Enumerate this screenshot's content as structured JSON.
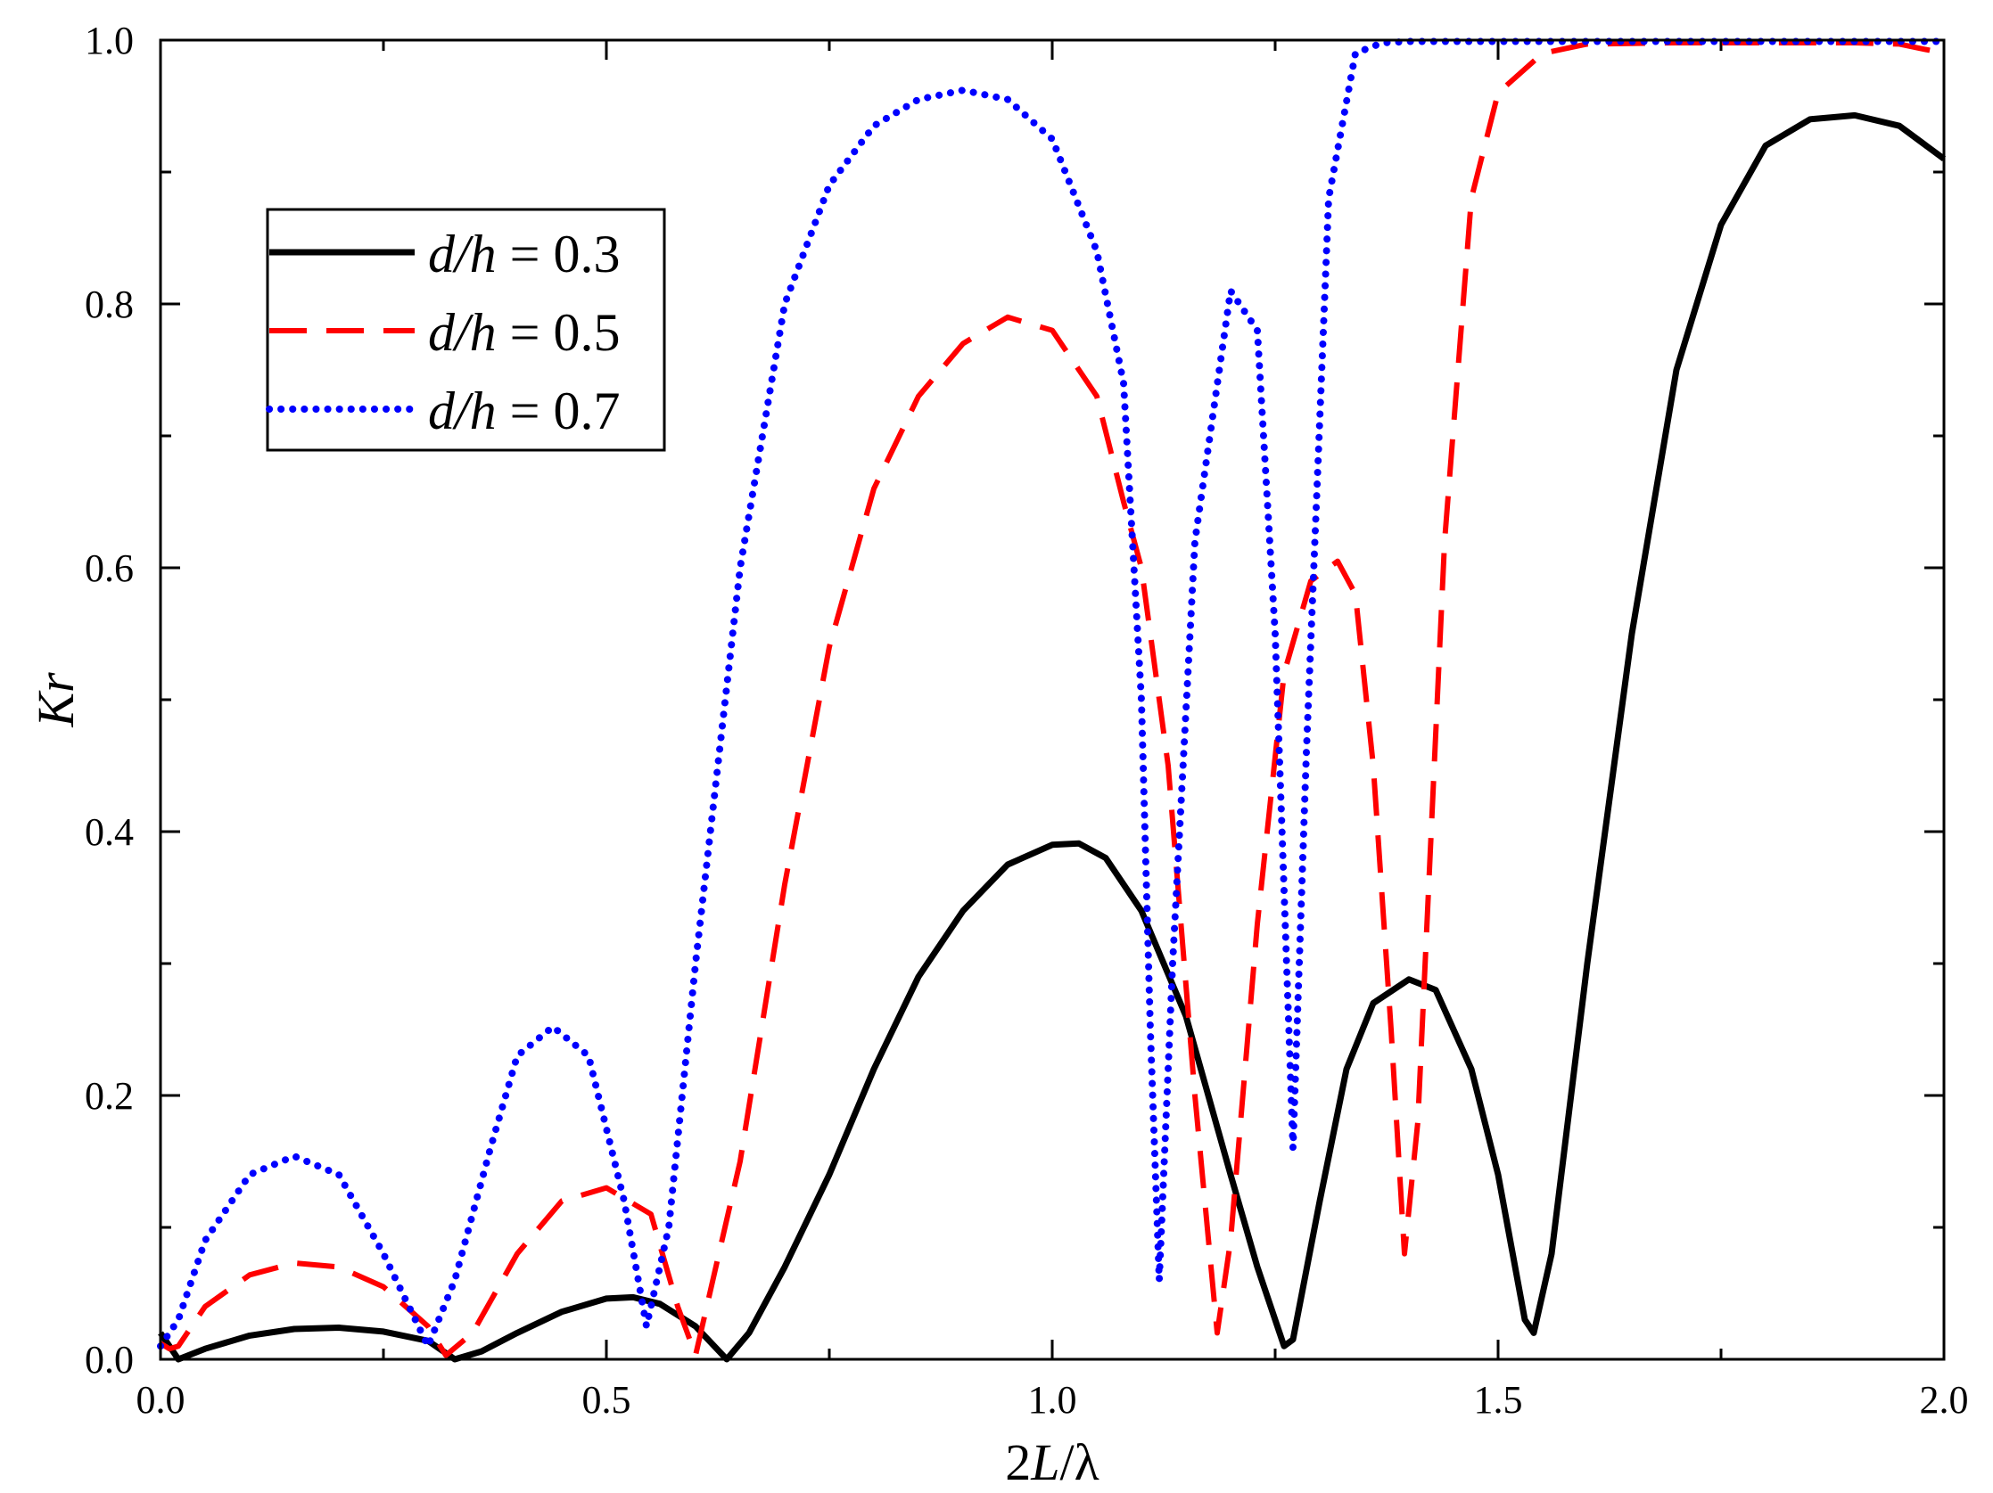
{
  "chart_data": {
    "type": "line",
    "title": "",
    "xlabel": {
      "prefix": "2",
      "italic": "L",
      "suffix": "/λ"
    },
    "ylabel": {
      "italic": "Kr"
    },
    "xlim": [
      0,
      2
    ],
    "ylim": [
      0,
      1
    ],
    "x_ticks": [
      0.0,
      0.5,
      1.0,
      1.5,
      2.0
    ],
    "x_tick_labels": [
      "0.0",
      "0.5",
      "1.0",
      "1.5",
      "2.0"
    ],
    "y_ticks": [
      0.0,
      0.2,
      0.4,
      0.6,
      0.8,
      1.0
    ],
    "y_tick_labels": [
      "0.0",
      "0.2",
      "0.4",
      "0.6",
      "0.8",
      "1.0"
    ],
    "grid": false,
    "legend": {
      "placement": "upper-left"
    },
    "series": [
      {
        "name": "d/h = 0.3",
        "legend_italic": "d/h",
        "legend_rest": " = 0.3",
        "color": "#000000",
        "style": "solid",
        "points": [
          [
            0.0,
            0.02
          ],
          [
            0.01,
            0.01
          ],
          [
            0.02,
            0.0
          ],
          [
            0.05,
            0.008
          ],
          [
            0.1,
            0.018
          ],
          [
            0.15,
            0.023
          ],
          [
            0.2,
            0.024
          ],
          [
            0.25,
            0.021
          ],
          [
            0.3,
            0.014
          ],
          [
            0.33,
            0.0
          ],
          [
            0.36,
            0.006
          ],
          [
            0.4,
            0.02
          ],
          [
            0.45,
            0.036
          ],
          [
            0.5,
            0.046
          ],
          [
            0.53,
            0.047
          ],
          [
            0.56,
            0.042
          ],
          [
            0.6,
            0.025
          ],
          [
            0.635,
            0.0
          ],
          [
            0.66,
            0.02
          ],
          [
            0.7,
            0.07
          ],
          [
            0.75,
            0.14
          ],
          [
            0.8,
            0.22
          ],
          [
            0.85,
            0.29
          ],
          [
            0.9,
            0.34
          ],
          [
            0.95,
            0.375
          ],
          [
            1.0,
            0.39
          ],
          [
            1.03,
            0.391
          ],
          [
            1.06,
            0.38
          ],
          [
            1.1,
            0.34
          ],
          [
            1.15,
            0.26
          ],
          [
            1.2,
            0.14
          ],
          [
            1.23,
            0.07
          ],
          [
            1.26,
            0.01
          ],
          [
            1.27,
            0.015
          ],
          [
            1.3,
            0.12
          ],
          [
            1.33,
            0.22
          ],
          [
            1.36,
            0.27
          ],
          [
            1.4,
            0.288
          ],
          [
            1.43,
            0.28
          ],
          [
            1.47,
            0.22
          ],
          [
            1.5,
            0.14
          ],
          [
            1.53,
            0.03
          ],
          [
            1.54,
            0.02
          ],
          [
            1.56,
            0.08
          ],
          [
            1.6,
            0.3
          ],
          [
            1.65,
            0.55
          ],
          [
            1.7,
            0.75
          ],
          [
            1.75,
            0.86
          ],
          [
            1.8,
            0.92
          ],
          [
            1.85,
            0.94
          ],
          [
            1.9,
            0.943
          ],
          [
            1.95,
            0.935
          ],
          [
            1.98,
            0.92
          ],
          [
            2.0,
            0.91
          ]
        ]
      },
      {
        "name": "d/h = 0.5",
        "legend_italic": "d/h",
        "legend_rest": " = 0.5",
        "color": "#ff0000",
        "style": "dashed",
        "points": [
          [
            0.0,
            0.012
          ],
          [
            0.01,
            0.008
          ],
          [
            0.02,
            0.01
          ],
          [
            0.05,
            0.04
          ],
          [
            0.1,
            0.064
          ],
          [
            0.15,
            0.073
          ],
          [
            0.2,
            0.07
          ],
          [
            0.25,
            0.055
          ],
          [
            0.3,
            0.025
          ],
          [
            0.32,
            0.003
          ],
          [
            0.35,
            0.02
          ],
          [
            0.4,
            0.08
          ],
          [
            0.45,
            0.12
          ],
          [
            0.5,
            0.13
          ],
          [
            0.55,
            0.11
          ],
          [
            0.58,
            0.04
          ],
          [
            0.6,
            0.003
          ],
          [
            0.65,
            0.15
          ],
          [
            0.7,
            0.36
          ],
          [
            0.75,
            0.54
          ],
          [
            0.8,
            0.66
          ],
          [
            0.85,
            0.73
          ],
          [
            0.9,
            0.77
          ],
          [
            0.95,
            0.79
          ],
          [
            1.0,
            0.78
          ],
          [
            1.05,
            0.73
          ],
          [
            1.08,
            0.65
          ],
          [
            1.1,
            0.6
          ],
          [
            1.13,
            0.45
          ],
          [
            1.16,
            0.2
          ],
          [
            1.185,
            0.02
          ],
          [
            1.2,
            0.09
          ],
          [
            1.23,
            0.33
          ],
          [
            1.26,
            0.52
          ],
          [
            1.29,
            0.59
          ],
          [
            1.32,
            0.605
          ],
          [
            1.34,
            0.58
          ],
          [
            1.36,
            0.45
          ],
          [
            1.38,
            0.25
          ],
          [
            1.395,
            0.08
          ],
          [
            1.41,
            0.18
          ],
          [
            1.44,
            0.62
          ],
          [
            1.47,
            0.88
          ],
          [
            1.5,
            0.96
          ],
          [
            1.55,
            0.99
          ],
          [
            1.6,
            0.997
          ],
          [
            1.7,
            0.998
          ],
          [
            1.8,
            0.998
          ],
          [
            1.9,
            0.998
          ],
          [
            1.95,
            0.997
          ],
          [
            2.0,
            0.99
          ]
        ]
      },
      {
        "name": "d/h = 0.7",
        "legend_italic": "d/h",
        "legend_rest": " = 0.7",
        "color": "#0000ff",
        "style": "dotted",
        "points": [
          [
            0.0,
            0.01
          ],
          [
            0.02,
            0.03
          ],
          [
            0.05,
            0.09
          ],
          [
            0.1,
            0.14
          ],
          [
            0.15,
            0.154
          ],
          [
            0.2,
            0.14
          ],
          [
            0.25,
            0.08
          ],
          [
            0.3,
            0.01
          ],
          [
            0.33,
            0.06
          ],
          [
            0.37,
            0.16
          ],
          [
            0.4,
            0.23
          ],
          [
            0.44,
            0.252
          ],
          [
            0.48,
            0.23
          ],
          [
            0.52,
            0.12
          ],
          [
            0.545,
            0.025
          ],
          [
            0.57,
            0.1
          ],
          [
            0.6,
            0.3
          ],
          [
            0.65,
            0.6
          ],
          [
            0.7,
            0.8
          ],
          [
            0.75,
            0.89
          ],
          [
            0.8,
            0.935
          ],
          [
            0.85,
            0.955
          ],
          [
            0.9,
            0.962
          ],
          [
            0.95,
            0.955
          ],
          [
            1.0,
            0.925
          ],
          [
            1.05,
            0.84
          ],
          [
            1.08,
            0.74
          ],
          [
            1.1,
            0.5
          ],
          [
            1.11,
            0.25
          ],
          [
            1.12,
            0.06
          ],
          [
            1.135,
            0.3
          ],
          [
            1.16,
            0.62
          ],
          [
            1.2,
            0.81
          ],
          [
            1.23,
            0.78
          ],
          [
            1.25,
            0.55
          ],
          [
            1.27,
            0.16
          ],
          [
            1.285,
            0.46
          ],
          [
            1.31,
            0.88
          ],
          [
            1.34,
            0.99
          ],
          [
            1.37,
            0.998
          ],
          [
            1.4,
            0.999
          ],
          [
            1.5,
            0.999
          ],
          [
            1.6,
            0.999
          ],
          [
            1.7,
            0.999
          ],
          [
            1.8,
            0.999
          ],
          [
            1.9,
            0.999
          ],
          [
            2.0,
            0.999
          ]
        ]
      }
    ]
  }
}
